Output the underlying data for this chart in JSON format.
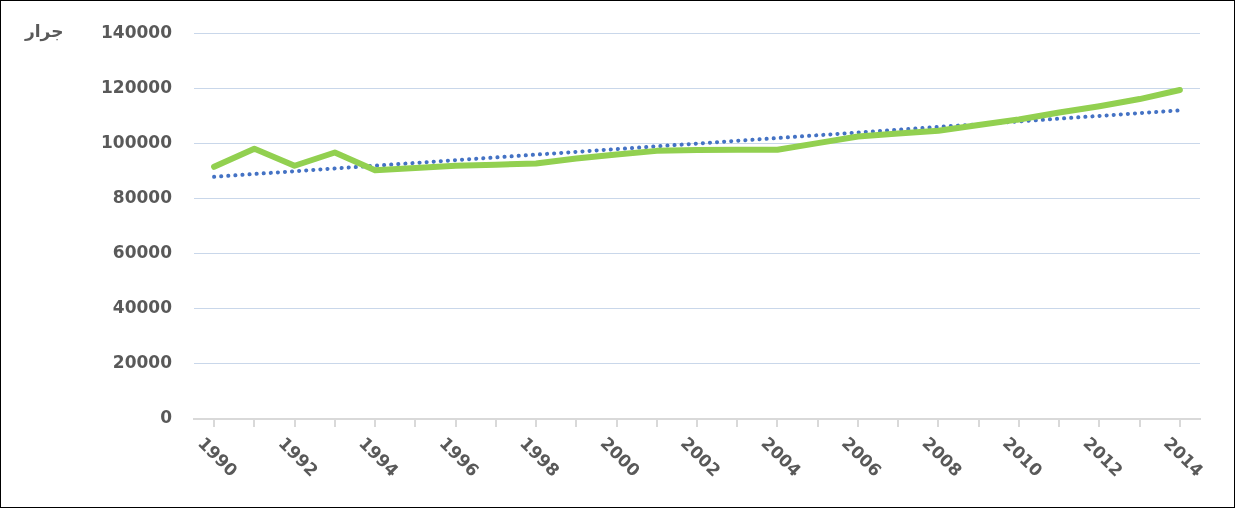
{
  "chart_data": {
    "type": "line",
    "ylabel": "جرار",
    "x": [
      1990,
      1991,
      1992,
      1993,
      1994,
      1995,
      1996,
      1997,
      1998,
      1999,
      2000,
      2001,
      2002,
      2003,
      2004,
      2005,
      2006,
      2007,
      2008,
      2009,
      2010,
      2011,
      2012,
      2013,
      2014
    ],
    "series": [
      {
        "color": "#92d050",
        "line_style": "solid",
        "values": [
          91500,
          98100,
          91900,
          96700,
          90300,
          91100,
          91900,
          92300,
          92700,
          94500,
          96000,
          97300,
          97600,
          97700,
          97700,
          100100,
          102500,
          103600,
          104600,
          106700,
          108700,
          111200,
          113500,
          116100,
          119400
        ]
      },
      {
        "type": "line",
        "color": "#4472c4",
        "line_style": "dotted",
        "x": [
          1990,
          2014
        ],
        "values": [
          87900,
          112000
        ]
      }
    ],
    "xlim": [
      1989.5,
      2014.5
    ],
    "xticks": [
      {
        "value": 1990,
        "label": "1990"
      },
      {
        "value": 1991,
        "label": null
      },
      {
        "value": 1992,
        "label": "1992"
      },
      {
        "value": 1993,
        "label": null
      },
      {
        "value": 1994,
        "label": "1994"
      },
      {
        "value": 1995,
        "label": null
      },
      {
        "value": 1996,
        "label": "1996"
      },
      {
        "value": 1997,
        "label": null
      },
      {
        "value": 1998,
        "label": "1998"
      },
      {
        "value": 1999,
        "label": null
      },
      {
        "value": 2000,
        "label": "2000"
      },
      {
        "value": 2001,
        "label": null
      },
      {
        "value": 2002,
        "label": "2002"
      },
      {
        "value": 2003,
        "label": null
      },
      {
        "value": 2004,
        "label": "2004"
      },
      {
        "value": 2005,
        "label": null
      },
      {
        "value": 2006,
        "label": "2006"
      },
      {
        "value": 2007,
        "label": null
      },
      {
        "value": 2008,
        "label": "2008"
      },
      {
        "value": 2009,
        "label": null
      },
      {
        "value": 2010,
        "label": "2010"
      },
      {
        "value": 2011,
        "label": null
      },
      {
        "value": 2012,
        "label": "2012"
      },
      {
        "value": 2013,
        "label": null
      },
      {
        "value": 2014,
        "label": "2014"
      }
    ],
    "ylim": [
      0,
      140000
    ],
    "yticks": [
      0,
      20000,
      40000,
      60000,
      80000,
      100000,
      120000,
      140000
    ],
    "grid": "y",
    "marker": "none"
  }
}
